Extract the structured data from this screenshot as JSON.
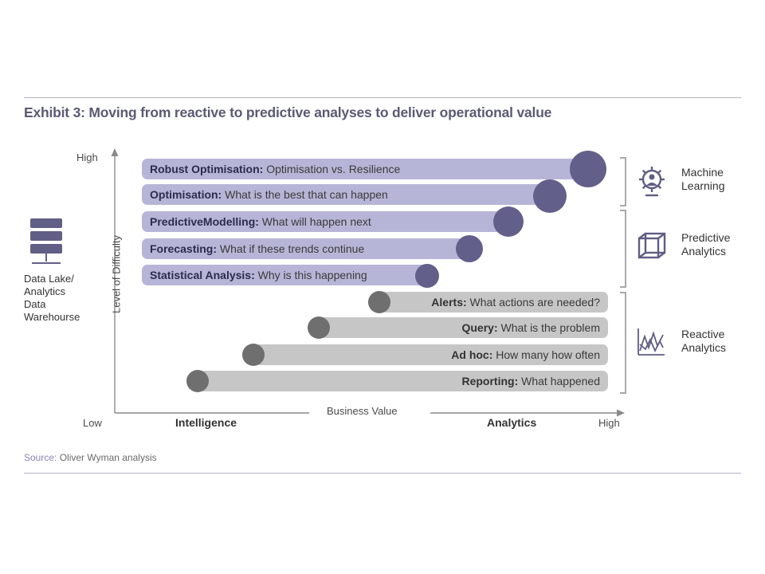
{
  "title": "Exhibit 3: Moving from reactive to predictive analyses to deliver operational value",
  "y_axis": {
    "label": "Level of Difficulty",
    "high": "High"
  },
  "x_axis": {
    "label": "Business Value",
    "low": "Low",
    "high": "High",
    "left_zone": "Intelligence",
    "right_zone": "Analytics"
  },
  "data_source": {
    "label": "Data Lake/\nAnalytics\nData\nWarehourse",
    "icon": "server-icon"
  },
  "predictive_items": [
    {
      "name": "Robust Optimisation:",
      "desc": " Optimisation vs. Resilience"
    },
    {
      "name": "Optimisation:",
      "desc": " What is the best that can happen"
    },
    {
      "name": "PredictiveModelling:",
      "desc": " What will happen next"
    },
    {
      "name": "Forecasting:",
      "desc": " What if these trends continue"
    },
    {
      "name": "Statistical Analysis:",
      "desc": " Why is this happening"
    }
  ],
  "reactive_items": [
    {
      "name": "Alerts:",
      "desc": " What actions are needed?"
    },
    {
      "name": "Query:",
      "desc": " What is the problem"
    },
    {
      "name": "Ad hoc:",
      "desc": " How many how often"
    },
    {
      "name": "Reporting:",
      "desc": " What happened"
    }
  ],
  "categories": [
    {
      "label": "Machine\nLearning",
      "icon": "gear-person-icon"
    },
    {
      "label": "Predictive\nAnalytics",
      "icon": "cube-icon"
    },
    {
      "label": "Reactive\nAnalytics",
      "icon": "line-chart-icon"
    }
  ],
  "source": {
    "key": "Source:",
    "value": " Oliver Wyman analysis"
  },
  "colors": {
    "purple_bar": "#b7b5d7",
    "purple_dot": "#62608a",
    "gray_bar": "#c6c6c6",
    "gray_dot": "#6f6f6f",
    "rule": "#b3b0c8"
  }
}
